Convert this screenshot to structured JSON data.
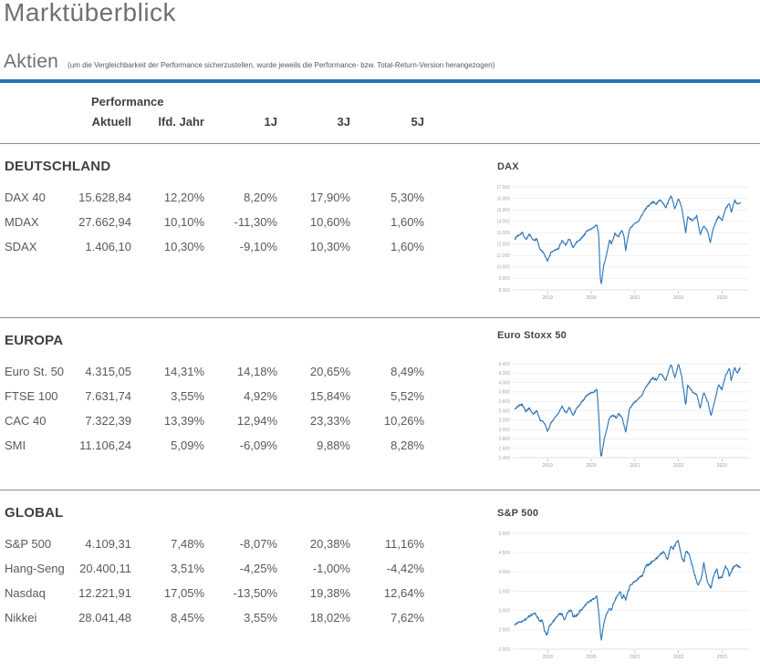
{
  "page": {
    "title": "Marktüberblick",
    "section_title": "Aktien",
    "section_note": "(um die Vergleichbarkeit der Performance sicherzustellen, wurde jeweils die Performance- bzw. Total-Return-Version herangezogen)",
    "accent_color": "#2a72b8"
  },
  "table": {
    "group_header": "Performance",
    "columns": [
      "Aktuell",
      "lfd. Jahr",
      "1J",
      "3J",
      "5J"
    ],
    "sections": [
      {
        "title": "DEUTSCHLAND",
        "rows": [
          {
            "label": "DAX 40",
            "values": [
              "15.628,84",
              "12,20%",
              "8,20%",
              "17,90%",
              "5,30%"
            ]
          },
          {
            "label": "MDAX",
            "values": [
              "27.662,94",
              "10,10%",
              "-11,30%",
              "10,60%",
              "1,60%"
            ]
          },
          {
            "label": "SDAX",
            "values": [
              "1.406,10",
              "10,30%",
              "-9,10%",
              "10,30%",
              "1,60%"
            ]
          }
        ]
      },
      {
        "title": "EUROPA",
        "rows": [
          {
            "label": "Euro St. 50",
            "values": [
              "4.315,05",
              "14,31%",
              "14,18%",
              "20,65%",
              "8,49%"
            ]
          },
          {
            "label": "FTSE 100",
            "values": [
              "7.631,74",
              "3,55%",
              "4,92%",
              "15,84%",
              "5,52%"
            ]
          },
          {
            "label": "CAC 40",
            "values": [
              "7.322,39",
              "13,39%",
              "12,94%",
              "23,33%",
              "10,26%"
            ]
          },
          {
            "label": "SMI",
            "values": [
              "11.106,24",
              "5,09%",
              "-6,09%",
              "9,88%",
              "8,28%"
            ]
          }
        ]
      },
      {
        "title": "GLOBAL",
        "rows": [
          {
            "label": "S&P 500",
            "values": [
              "4.109,31",
              "7,48%",
              "-8,07%",
              "20,38%",
              "11,16%"
            ]
          },
          {
            "label": "Hang-Seng",
            "values": [
              "20.400,11",
              "3,51%",
              "-4,25%",
              "-1,00%",
              "-4,42%"
            ]
          },
          {
            "label": "Nasdaq",
            "values": [
              "12.221,91",
              "17,05%",
              "-13,50%",
              "19,38%",
              "12,64%"
            ]
          },
          {
            "label": "Nikkei",
            "values": [
              "28.041,48",
              "8,45%",
              "3,55%",
              "18,02%",
              "7,62%"
            ]
          }
        ]
      }
    ]
  },
  "chart_data": [
    {
      "type": "line",
      "title": "DAX",
      "xlabel": "",
      "ylabel": "",
      "legend": "none",
      "grid": true,
      "line_color": "#2e75b6",
      "xlim": [
        2018.2,
        2023.62
      ],
      "ylim": [
        8000,
        17000
      ],
      "x_ticks": [
        2019,
        2020,
        2021,
        2022,
        2023
      ],
      "y_ticks": [
        8000,
        9000,
        10000,
        11000,
        12000,
        13000,
        14000,
        15000,
        16000,
        17000
      ],
      "last_value": 15628.84,
      "anchors": [
        [
          2018.25,
          12450
        ],
        [
          2018.3,
          12700
        ],
        [
          2018.42,
          13000
        ],
        [
          2018.5,
          12400
        ],
        [
          2018.58,
          12850
        ],
        [
          2018.67,
          12300
        ],
        [
          2018.75,
          12450
        ],
        [
          2018.83,
          11500
        ],
        [
          2018.92,
          11200
        ],
        [
          2019.0,
          10500
        ],
        [
          2019.08,
          11300
        ],
        [
          2019.25,
          11600
        ],
        [
          2019.33,
          12300
        ],
        [
          2019.42,
          11900
        ],
        [
          2019.5,
          12500
        ],
        [
          2019.58,
          11700
        ],
        [
          2019.67,
          12200
        ],
        [
          2019.75,
          12400
        ],
        [
          2019.92,
          13200
        ],
        [
          2020.04,
          13400
        ],
        [
          2020.13,
          13700
        ],
        [
          2020.17,
          12900
        ],
        [
          2020.21,
          8900
        ],
        [
          2020.23,
          8450
        ],
        [
          2020.29,
          10200
        ],
        [
          2020.33,
          10700
        ],
        [
          2020.42,
          12400
        ],
        [
          2020.46,
          12000
        ],
        [
          2020.54,
          12900
        ],
        [
          2020.63,
          12700
        ],
        [
          2020.71,
          13200
        ],
        [
          2020.75,
          12700
        ],
        [
          2020.79,
          11500
        ],
        [
          2020.88,
          13300
        ],
        [
          2021.0,
          13800
        ],
        [
          2021.08,
          14000
        ],
        [
          2021.17,
          14600
        ],
        [
          2021.25,
          15100
        ],
        [
          2021.33,
          15400
        ],
        [
          2021.42,
          15700
        ],
        [
          2021.5,
          15500
        ],
        [
          2021.58,
          15900
        ],
        [
          2021.71,
          15200
        ],
        [
          2021.83,
          16250
        ],
        [
          2021.92,
          15100
        ],
        [
          2022.0,
          16000
        ],
        [
          2022.08,
          15100
        ],
        [
          2022.17,
          12950
        ],
        [
          2022.21,
          14400
        ],
        [
          2022.33,
          14050
        ],
        [
          2022.42,
          14500
        ],
        [
          2022.5,
          12800
        ],
        [
          2022.58,
          13600
        ],
        [
          2022.67,
          13100
        ],
        [
          2022.73,
          12150
        ],
        [
          2022.79,
          13250
        ],
        [
          2022.92,
          14450
        ],
        [
          2023.0,
          14050
        ],
        [
          2023.08,
          15100
        ],
        [
          2023.17,
          15550
        ],
        [
          2023.21,
          14750
        ],
        [
          2023.29,
          15800
        ],
        [
          2023.35,
          15500
        ],
        [
          2023.42,
          15628
        ]
      ]
    },
    {
      "type": "line",
      "title": "Euro Stoxx 50",
      "xlabel": "",
      "ylabel": "",
      "legend": "none",
      "grid": true,
      "line_color": "#2e75b6",
      "xlim": [
        2018.2,
        2023.62
      ],
      "ylim": [
        2400,
        4400
      ],
      "x_ticks": [
        2019,
        2020,
        2021,
        2022,
        2023
      ],
      "y_ticks": [
        2400,
        2600,
        2800,
        3000,
        3200,
        3400,
        3600,
        3800,
        4000,
        4200,
        4400
      ],
      "last_value": 4315.05,
      "anchors": [
        [
          2018.25,
          3440
        ],
        [
          2018.33,
          3500
        ],
        [
          2018.42,
          3530
        ],
        [
          2018.5,
          3380
        ],
        [
          2018.58,
          3450
        ],
        [
          2018.67,
          3330
        ],
        [
          2018.75,
          3400
        ],
        [
          2018.83,
          3200
        ],
        [
          2018.92,
          3150
        ],
        [
          2019.0,
          2950
        ],
        [
          2019.08,
          3150
        ],
        [
          2019.17,
          3250
        ],
        [
          2019.25,
          3350
        ],
        [
          2019.33,
          3500
        ],
        [
          2019.42,
          3350
        ],
        [
          2019.5,
          3480
        ],
        [
          2019.58,
          3300
        ],
        [
          2019.67,
          3450
        ],
        [
          2019.75,
          3550
        ],
        [
          2019.92,
          3750
        ],
        [
          2020.04,
          3790
        ],
        [
          2020.13,
          3850
        ],
        [
          2020.17,
          3350
        ],
        [
          2020.21,
          2550
        ],
        [
          2020.23,
          2400
        ],
        [
          2020.29,
          2750
        ],
        [
          2020.33,
          2900
        ],
        [
          2020.42,
          3250
        ],
        [
          2020.5,
          3300
        ],
        [
          2020.58,
          3250
        ],
        [
          2020.63,
          3350
        ],
        [
          2020.71,
          3250
        ],
        [
          2020.79,
          2950
        ],
        [
          2020.88,
          3450
        ],
        [
          2020.96,
          3550
        ],
        [
          2021.08,
          3650
        ],
        [
          2021.17,
          3750
        ],
        [
          2021.25,
          3900
        ],
        [
          2021.33,
          4000
        ],
        [
          2021.42,
          4100
        ],
        [
          2021.5,
          4050
        ],
        [
          2021.58,
          4200
        ],
        [
          2021.71,
          4050
        ],
        [
          2021.83,
          4400
        ],
        [
          2021.92,
          4100
        ],
        [
          2022.0,
          4400
        ],
        [
          2022.08,
          4100
        ],
        [
          2022.17,
          3500
        ],
        [
          2022.21,
          3950
        ],
        [
          2022.33,
          3800
        ],
        [
          2022.42,
          3750
        ],
        [
          2022.5,
          3450
        ],
        [
          2022.58,
          3800
        ],
        [
          2022.67,
          3600
        ],
        [
          2022.75,
          3300
        ],
        [
          2022.83,
          3600
        ],
        [
          2022.92,
          3950
        ],
        [
          2023.0,
          3850
        ],
        [
          2023.08,
          4150
        ],
        [
          2023.17,
          4300
        ],
        [
          2023.21,
          4050
        ],
        [
          2023.29,
          4320
        ],
        [
          2023.35,
          4200
        ],
        [
          2023.42,
          4315
        ]
      ]
    },
    {
      "type": "line",
      "title": "S&P 500",
      "xlabel": "",
      "ylabel": "",
      "legend": "none",
      "grid": true,
      "line_color": "#2e75b6",
      "xlim": [
        2018.2,
        2023.62
      ],
      "ylim": [
        2000,
        5000
      ],
      "x_ticks": [
        2019,
        2020,
        2021,
        2022,
        2023
      ],
      "y_ticks": [
        2000,
        2500,
        3000,
        3500,
        4000,
        4500,
        5000
      ],
      "last_value": 4109.31,
      "anchors": [
        [
          2018.25,
          2620
        ],
        [
          2018.33,
          2700
        ],
        [
          2018.42,
          2720
        ],
        [
          2018.5,
          2780
        ],
        [
          2018.58,
          2850
        ],
        [
          2018.71,
          2930
        ],
        [
          2018.79,
          2780
        ],
        [
          2018.83,
          2720
        ],
        [
          2018.88,
          2760
        ],
        [
          2018.92,
          2500
        ],
        [
          2018.98,
          2350
        ],
        [
          2019.04,
          2600
        ],
        [
          2019.17,
          2780
        ],
        [
          2019.25,
          2890
        ],
        [
          2019.33,
          2920
        ],
        [
          2019.38,
          2750
        ],
        [
          2019.46,
          2950
        ],
        [
          2019.54,
          3020
        ],
        [
          2019.58,
          2850
        ],
        [
          2019.67,
          2880
        ],
        [
          2019.75,
          2990
        ],
        [
          2019.83,
          3080
        ],
        [
          2019.92,
          3220
        ],
        [
          2020.0,
          3250
        ],
        [
          2020.13,
          3380
        ],
        [
          2020.17,
          2950
        ],
        [
          2020.21,
          2450
        ],
        [
          2020.23,
          2230
        ],
        [
          2020.29,
          2650
        ],
        [
          2020.33,
          2850
        ],
        [
          2020.42,
          3050
        ],
        [
          2020.46,
          3000
        ],
        [
          2020.5,
          3150
        ],
        [
          2020.58,
          3350
        ],
        [
          2020.67,
          3500
        ],
        [
          2020.71,
          3300
        ],
        [
          2020.75,
          3400
        ],
        [
          2020.79,
          3270
        ],
        [
          2020.88,
          3620
        ],
        [
          2020.96,
          3720
        ],
        [
          2021.04,
          3780
        ],
        [
          2021.08,
          3850
        ],
        [
          2021.17,
          3900
        ],
        [
          2021.25,
          4150
        ],
        [
          2021.33,
          4200
        ],
        [
          2021.42,
          4280
        ],
        [
          2021.5,
          4350
        ],
        [
          2021.58,
          4450
        ],
        [
          2021.67,
          4530
        ],
        [
          2021.75,
          4300
        ],
        [
          2021.83,
          4680
        ],
        [
          2021.88,
          4590
        ],
        [
          2021.96,
          4780
        ],
        [
          2022.0,
          4790
        ],
        [
          2022.08,
          4350
        ],
        [
          2022.13,
          4250
        ],
        [
          2022.17,
          4550
        ],
        [
          2022.25,
          4450
        ],
        [
          2022.33,
          4100
        ],
        [
          2022.42,
          3750
        ],
        [
          2022.46,
          3650
        ],
        [
          2022.54,
          3900
        ],
        [
          2022.58,
          4280
        ],
        [
          2022.67,
          3700
        ],
        [
          2022.75,
          3580
        ],
        [
          2022.79,
          3850
        ],
        [
          2022.88,
          4080
        ],
        [
          2022.92,
          3850
        ],
        [
          2023.0,
          3850
        ],
        [
          2023.08,
          4150
        ],
        [
          2023.13,
          4050
        ],
        [
          2023.17,
          3900
        ],
        [
          2023.25,
          4100
        ],
        [
          2023.33,
          4180
        ],
        [
          2023.42,
          4109
        ]
      ]
    }
  ]
}
